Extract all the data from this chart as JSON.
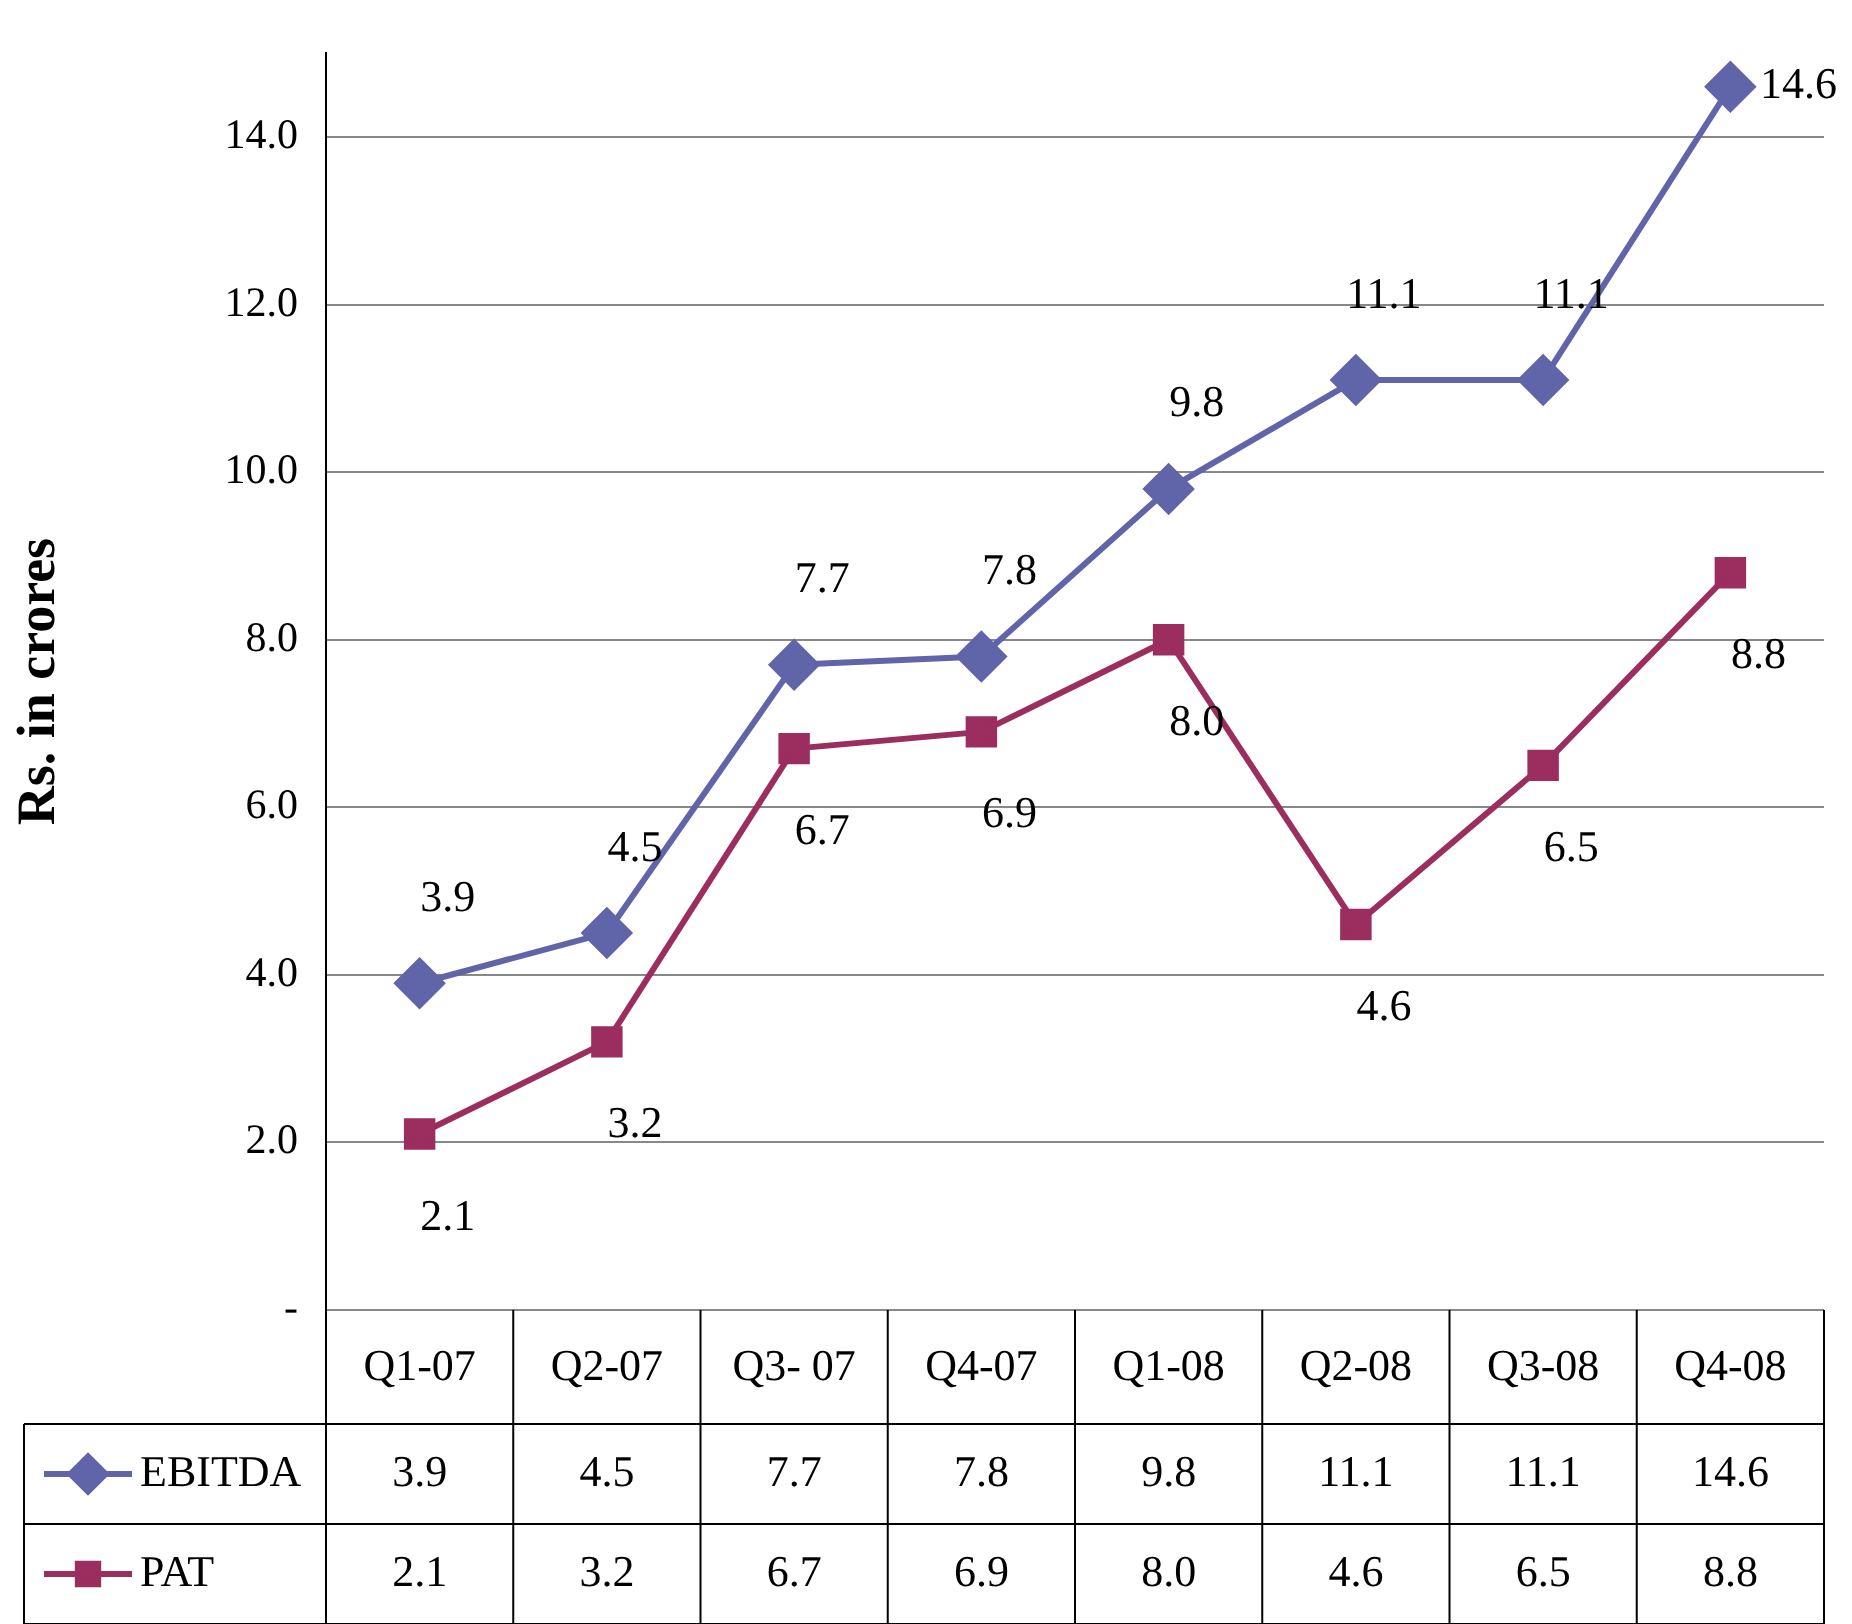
{
  "chart_data": {
    "type": "line",
    "ylabel": "Rs. in crores",
    "categories": [
      "Q1-07",
      "Q2-07",
      "Q3- 07",
      "Q4-07",
      "Q1-08",
      "Q2-08",
      "Q3-08",
      "Q4-08"
    ],
    "series": [
      {
        "name": "EBITDA",
        "color": "#6064a8",
        "marker": "diamond",
        "values": [
          3.9,
          4.5,
          7.7,
          7.8,
          9.8,
          11.1,
          11.1,
          14.6
        ],
        "value_labels": [
          "3.9",
          "4.5",
          "7.7",
          "7.8",
          "9.8",
          "11.1",
          "11.1",
          "14.6"
        ]
      },
      {
        "name": "PAT",
        "color": "#9b2d5f",
        "marker": "square",
        "values": [
          2.1,
          3.2,
          6.7,
          6.9,
          8.0,
          4.6,
          6.5,
          8.8
        ],
        "value_labels": [
          "2.1",
          "3.2",
          "6.7",
          "6.9",
          "8.0",
          "4.6",
          "6.5",
          "8.8"
        ]
      }
    ],
    "ylim": [
      0,
      15
    ],
    "yticks": [
      {
        "value": 0,
        "label": "-"
      },
      {
        "value": 2,
        "label": "2.0"
      },
      {
        "value": 4,
        "label": "4.0"
      },
      {
        "value": 6,
        "label": "6.0"
      },
      {
        "value": 8,
        "label": "8.0"
      },
      {
        "value": 10,
        "label": "10.0"
      },
      {
        "value": 12,
        "label": "12.0"
      },
      {
        "value": 14,
        "label": "14.0"
      }
    ],
    "grid": "y",
    "legend": "bottom"
  }
}
